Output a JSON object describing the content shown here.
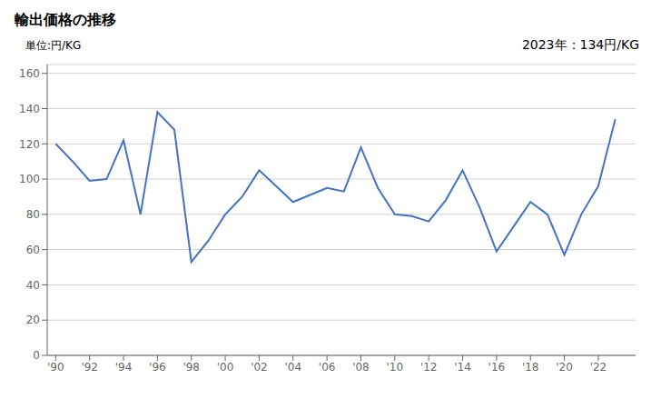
{
  "chart_data": {
    "type": "line",
    "title": "輸出価格の推移",
    "y_label": "単位:円/KG",
    "annotation": "2023年：134円/KG",
    "x": [
      1990,
      1991,
      1992,
      1993,
      1994,
      1995,
      1996,
      1997,
      1998,
      1999,
      2000,
      2001,
      2002,
      2003,
      2004,
      2005,
      2006,
      2007,
      2008,
      2009,
      2010,
      2011,
      2012,
      2013,
      2014,
      2015,
      2016,
      2017,
      2018,
      2019,
      2020,
      2021,
      2022,
      2023
    ],
    "values": [
      120,
      110,
      99,
      100,
      122,
      80,
      138,
      128,
      53,
      65,
      80,
      90,
      105,
      96,
      87,
      91,
      95,
      93,
      118,
      95,
      80,
      79,
      76,
      88,
      105,
      84,
      59,
      73,
      87,
      80,
      57,
      80,
      96,
      134
    ],
    "color": "#4472C4",
    "xlim": [
      1989.5,
      2024.2
    ],
    "xticks": [
      {
        "value": 1990,
        "label": "'90"
      },
      {
        "value": 1992,
        "label": "'92"
      },
      {
        "value": 1994,
        "label": "'94"
      },
      {
        "value": 1996,
        "label": "'96"
      },
      {
        "value": 1998,
        "label": "'98"
      },
      {
        "value": 2000,
        "label": "'00"
      },
      {
        "value": 2002,
        "label": "'02"
      },
      {
        "value": 2004,
        "label": "'04"
      },
      {
        "value": 2006,
        "label": "'06"
      },
      {
        "value": 2008,
        "label": "'08"
      },
      {
        "value": 2010,
        "label": "'10"
      },
      {
        "value": 2012,
        "label": "'12"
      },
      {
        "value": 2014,
        "label": "'14"
      },
      {
        "value": 2016,
        "label": "'16"
      },
      {
        "value": 2018,
        "label": "'18"
      },
      {
        "value": 2020,
        "label": "'20"
      },
      {
        "value": 2022,
        "label": "'22"
      }
    ],
    "ylim": [
      0,
      165
    ],
    "yticks": [
      0,
      20,
      40,
      60,
      80,
      100,
      120,
      140,
      160
    ],
    "grid": true
  }
}
